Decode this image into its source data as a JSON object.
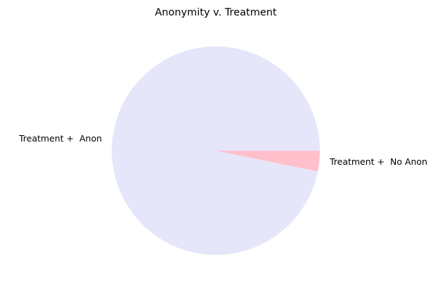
{
  "chart_data": {
    "type": "pie",
    "title": "Anonymity v. Treatment",
    "categories": [
      "Treatment +  Anon",
      "Treatment +  No Anon"
    ],
    "values": [
      96.8,
      3.2
    ],
    "colors": [
      "#e6e6fa",
      "#ffc0cb"
    ],
    "start_angle_deg": 0,
    "direction": "counterclockwise"
  }
}
